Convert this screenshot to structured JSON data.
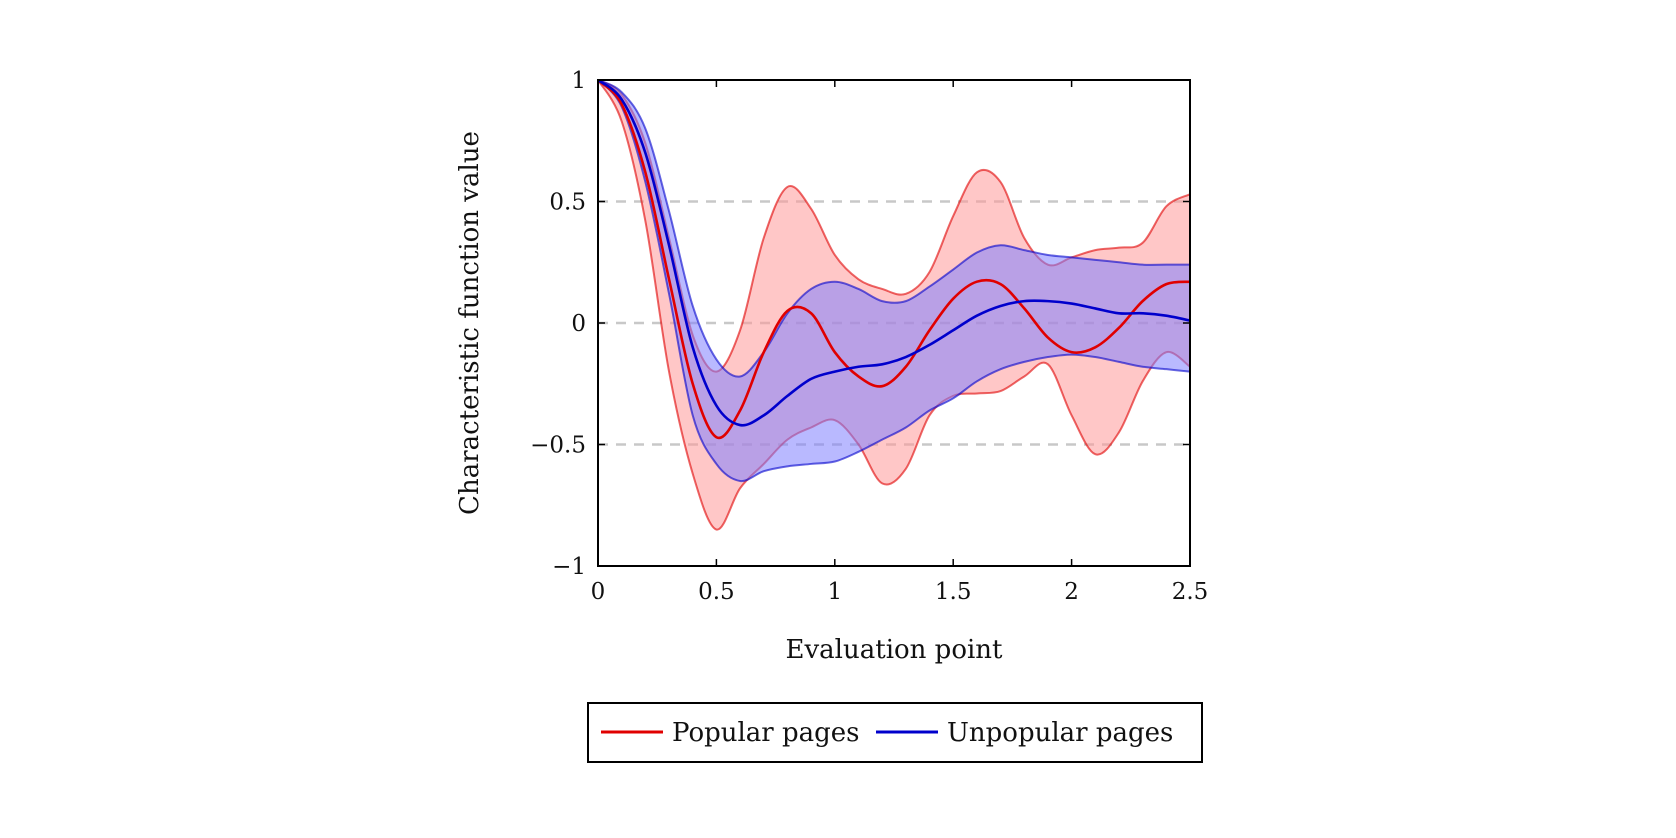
{
  "chart_data": {
    "type": "line",
    "title": "",
    "xlabel": "Evaluation point",
    "ylabel": "Characteristic function value",
    "xlim": [
      0,
      2.5
    ],
    "ylim": [
      -1,
      1
    ],
    "x_ticks": [
      "0",
      "0.5",
      "1",
      "1.5",
      "2",
      "2.5"
    ],
    "y_ticks": [
      "−1",
      "−0.5",
      "0",
      "0.5",
      "1"
    ],
    "grid": "horizontal dashed at 0.5, 0, −0.5",
    "legend_position": "bottom-center",
    "x": [
      0,
      0.1,
      0.2,
      0.3,
      0.4,
      0.5,
      0.6,
      0.7,
      0.8,
      0.9,
      1.0,
      1.1,
      1.2,
      1.3,
      1.4,
      1.5,
      1.6,
      1.7,
      1.8,
      1.9,
      2.0,
      2.1,
      2.2,
      2.3,
      2.4,
      2.5
    ],
    "series": [
      {
        "name": "Popular pages",
        "color": "#e00000",
        "band_fill": "#ff9999",
        "values": [
          1.0,
          0.9,
          0.62,
          0.18,
          -0.25,
          -0.47,
          -0.36,
          -0.12,
          0.05,
          0.04,
          -0.12,
          -0.22,
          -0.26,
          -0.18,
          -0.03,
          0.1,
          0.17,
          0.16,
          0.06,
          -0.06,
          -0.12,
          -0.1,
          -0.02,
          0.09,
          0.16,
          0.17
        ],
        "upper": [
          1.0,
          0.94,
          0.74,
          0.35,
          -0.05,
          -0.2,
          -0.03,
          0.35,
          0.56,
          0.47,
          0.28,
          0.18,
          0.14,
          0.12,
          0.21,
          0.44,
          0.62,
          0.58,
          0.35,
          0.24,
          0.27,
          0.3,
          0.31,
          0.33,
          0.48,
          0.53
        ],
        "lower": [
          1.0,
          0.83,
          0.42,
          -0.2,
          -0.62,
          -0.85,
          -0.68,
          -0.58,
          -0.48,
          -0.43,
          -0.4,
          -0.5,
          -0.66,
          -0.6,
          -0.38,
          -0.3,
          -0.29,
          -0.28,
          -0.22,
          -0.17,
          -0.38,
          -0.54,
          -0.45,
          -0.24,
          -0.12,
          -0.18
        ]
      },
      {
        "name": "Unpopular pages",
        "color": "#0000cc",
        "band_fill": "#8080ff",
        "values": [
          1.0,
          0.92,
          0.7,
          0.32,
          -0.1,
          -0.34,
          -0.42,
          -0.38,
          -0.3,
          -0.23,
          -0.2,
          -0.18,
          -0.17,
          -0.14,
          -0.09,
          -0.03,
          0.03,
          0.07,
          0.09,
          0.09,
          0.08,
          0.06,
          0.04,
          0.04,
          0.03,
          0.01
        ],
        "upper": [
          1.0,
          0.95,
          0.8,
          0.46,
          0.07,
          -0.15,
          -0.22,
          -0.12,
          0.04,
          0.14,
          0.17,
          0.14,
          0.09,
          0.09,
          0.15,
          0.22,
          0.29,
          0.32,
          0.3,
          0.28,
          0.27,
          0.26,
          0.25,
          0.24,
          0.24,
          0.24
        ],
        "lower": [
          1.0,
          0.89,
          0.58,
          0.12,
          -0.38,
          -0.58,
          -0.65,
          -0.61,
          -0.59,
          -0.58,
          -0.57,
          -0.53,
          -0.48,
          -0.43,
          -0.36,
          -0.31,
          -0.24,
          -0.19,
          -0.16,
          -0.14,
          -0.13,
          -0.14,
          -0.16,
          -0.18,
          -0.19,
          -0.2
        ]
      }
    ]
  }
}
